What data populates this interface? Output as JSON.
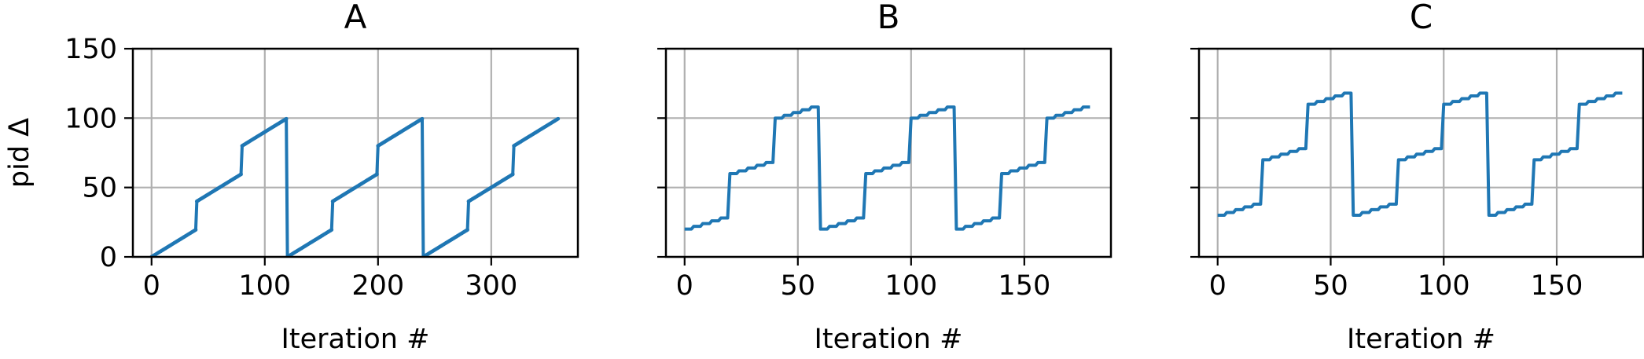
{
  "chart_data": [
    {
      "type": "line",
      "title": "A",
      "xlabel": "Iteration #",
      "ylabel": "pid Δ",
      "xlim": [
        -16.5,
        376.5
      ],
      "ylim": [
        0,
        150
      ],
      "xticks": [
        0,
        100,
        200,
        300
      ],
      "yticks": [
        0,
        50,
        100,
        150
      ],
      "grid": true,
      "color": "#1f77b4",
      "markers": true,
      "pattern": {
        "iterations": 360,
        "cycle_length": 120,
        "block_length": 40,
        "block_start_values": [
          0,
          40,
          80
        ],
        "step_per_iteration": 0.5
      }
    },
    {
      "type": "line",
      "title": "B",
      "xlabel": "Iteration #",
      "ylabel": "",
      "xlim": [
        -8.25,
        188.25
      ],
      "ylim": [
        0,
        150
      ],
      "xticks": [
        0,
        50,
        100,
        150
      ],
      "yticks": [
        0,
        50,
        100,
        150
      ],
      "grid": true,
      "color": "#1f77b4",
      "markers": false,
      "pattern": {
        "iterations": 180,
        "cycle_length": 60,
        "block_length": 20,
        "block_start_values": [
          20,
          60,
          100
        ],
        "step_every": 4,
        "step_size": 2
      }
    },
    {
      "type": "line",
      "title": "C",
      "xlabel": "Iteration #",
      "ylabel": "",
      "xlim": [
        -8.25,
        188.25
      ],
      "ylim": [
        0,
        150
      ],
      "xticks": [
        0,
        50,
        100,
        150
      ],
      "yticks": [
        0,
        50,
        100,
        150
      ],
      "grid": true,
      "color": "#1f77b4",
      "markers": false,
      "pattern": {
        "iterations": 180,
        "cycle_length": 60,
        "block_length": 20,
        "block_start_values": [
          30,
          70,
          110
        ],
        "step_every": 4,
        "step_size": 2
      }
    }
  ]
}
